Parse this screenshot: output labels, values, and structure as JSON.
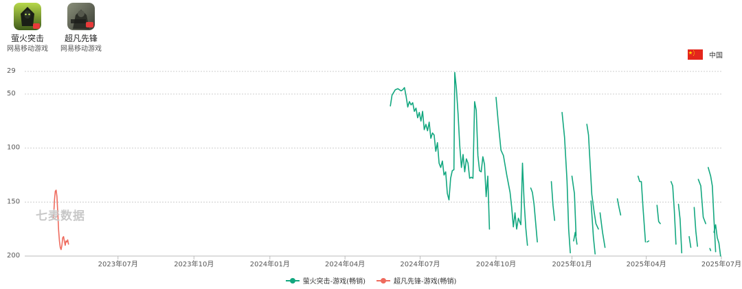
{
  "apps": [
    {
      "name": "萤火突击",
      "developer": "网易移动游戏",
      "icon": "firefly-assault-app-icon"
    },
    {
      "name": "超凡先锋",
      "developer": "网易移动游戏",
      "icon": "arena-breakout-app-icon"
    }
  ],
  "country": {
    "label": "中国",
    "icon": "china-flag-icon"
  },
  "watermark": "七麦数据",
  "colors": {
    "series1": "#12a77f",
    "series2": "#ee6a5d",
    "grid": "#cccccc"
  },
  "chart_data": {
    "type": "line",
    "title": "",
    "xlabel": "",
    "ylabel": "",
    "y_axis": {
      "inverted": true,
      "ticks": [
        29,
        50,
        100,
        150,
        200
      ],
      "range": [
        29,
        200
      ]
    },
    "x_axis": {
      "range": [
        "2023-03-10",
        "2025-07-01"
      ],
      "ticks": [
        "2023-07-01",
        "2023-10-01",
        "2024-01-01",
        "2024-04-01",
        "2024-07-01",
        "2024-10-01",
        "2025-01-01",
        "2025-04-01",
        "2025-07-01"
      ],
      "tick_labels": [
        "2023年07月",
        "2023年10月",
        "2024年01月",
        "2024年04月",
        "2024年07月",
        "2024年10月",
        "2025年01月",
        "2025年04月",
        "2025年07月"
      ]
    },
    "legend_position": "bottom",
    "grid": true,
    "series": [
      {
        "name": "萤火突击-游戏(畅销)",
        "color": "#12a77f",
        "segments": [
          [
            [
              "2024-05-26",
              61
            ],
            [
              "2024-05-28",
              51
            ],
            [
              "2024-06-01",
              46
            ],
            [
              "2024-06-04",
              45
            ],
            [
              "2024-06-08",
              47
            ],
            [
              "2024-06-10",
              46
            ],
            [
              "2024-06-12",
              44
            ],
            [
              "2024-06-14",
              52
            ],
            [
              "2024-06-16",
              62
            ],
            [
              "2024-06-18",
              57
            ],
            [
              "2024-06-20",
              60
            ],
            [
              "2024-06-22",
              58
            ],
            [
              "2024-06-24",
              66
            ],
            [
              "2024-06-26",
              63
            ],
            [
              "2024-06-28",
              72
            ],
            [
              "2024-06-30",
              67
            ],
            [
              "2024-07-02",
              75
            ],
            [
              "2024-07-04",
              66
            ],
            [
              "2024-07-06",
              83
            ],
            [
              "2024-07-08",
              78
            ],
            [
              "2024-07-10",
              84
            ],
            [
              "2024-07-12",
              76
            ],
            [
              "2024-07-14",
              91
            ],
            [
              "2024-07-16",
              86
            ],
            [
              "2024-07-18",
              88
            ],
            [
              "2024-07-20",
              103
            ],
            [
              "2024-07-22",
              95
            ],
            [
              "2024-07-24",
              114
            ],
            [
              "2024-07-26",
              118
            ],
            [
              "2024-07-28",
              112
            ],
            [
              "2024-07-30",
              125
            ],
            [
              "2024-08-01",
              122
            ],
            [
              "2024-08-03",
              142
            ],
            [
              "2024-08-05",
              148
            ],
            [
              "2024-08-07",
              128
            ],
            [
              "2024-08-09",
              121
            ],
            [
              "2024-08-11",
              120
            ],
            [
              "2024-08-12",
              30
            ],
            [
              "2024-08-14",
              45
            ],
            [
              "2024-08-16",
              68
            ],
            [
              "2024-08-18",
              97
            ],
            [
              "2024-08-20",
              118
            ],
            [
              "2024-08-22",
              106
            ],
            [
              "2024-08-24",
              122
            ],
            [
              "2024-08-26",
              110
            ],
            [
              "2024-08-28",
              114
            ],
            [
              "2024-08-30",
              128
            ],
            [
              "2024-09-01",
              127
            ],
            [
              "2024-09-03",
              128
            ],
            [
              "2024-09-05",
              57
            ],
            [
              "2024-09-07",
              65
            ],
            [
              "2024-09-09",
              107
            ],
            [
              "2024-09-11",
              121
            ],
            [
              "2024-09-13",
              122
            ],
            [
              "2024-09-15",
              108
            ],
            [
              "2024-09-17",
              115
            ],
            [
              "2024-09-19",
              145
            ],
            [
              "2024-09-21",
              126
            ],
            [
              "2024-09-23",
              175
            ]
          ],
          [
            [
              "2024-10-01",
              53
            ],
            [
              "2024-10-04",
              79
            ],
            [
              "2024-10-07",
              102
            ],
            [
              "2024-10-10",
              107
            ],
            [
              "2024-10-14",
              125
            ],
            [
              "2024-10-18",
              141
            ],
            [
              "2024-10-20",
              155
            ],
            [
              "2024-10-22",
              173
            ],
            [
              "2024-10-24",
              160
            ],
            [
              "2024-10-26",
              175
            ],
            [
              "2024-10-28",
              165
            ],
            [
              "2024-10-31",
              171
            ],
            [
              "2024-11-02",
              114
            ],
            [
              "2024-11-04",
              150
            ],
            [
              "2024-11-06",
              174
            ],
            [
              "2024-11-08",
              190
            ]
          ],
          [
            [
              "2024-11-12",
              137
            ],
            [
              "2024-11-14",
              141
            ],
            [
              "2024-11-16",
              152
            ],
            [
              "2024-11-20",
              187
            ]
          ],
          [
            [
              "2024-12-07",
              131
            ],
            [
              "2024-12-09",
              153
            ],
            [
              "2024-12-11",
              167
            ]
          ],
          [
            [
              "2025-01-01",
              126
            ],
            [
              "2025-01-03",
              137
            ],
            [
              "2025-01-04",
              142
            ],
            [
              "2025-01-06",
              181
            ]
          ],
          [
            [
              "2024-12-20",
              67
            ],
            [
              "2024-12-23",
              90
            ],
            [
              "2024-12-26",
              130
            ],
            [
              "2024-12-28",
              175
            ],
            [
              "2024-12-30",
              197
            ]
          ],
          [
            [
              "2025-01-03",
              186
            ],
            [
              "2025-01-05",
              178
            ],
            [
              "2025-01-07",
              189
            ]
          ],
          [
            [
              "2025-01-19",
              78
            ],
            [
              "2025-01-21",
              88
            ],
            [
              "2025-01-25",
              143
            ],
            [
              "2025-01-28",
              160
            ],
            [
              "2025-01-30",
              170
            ],
            [
              "2025-02-02",
              175
            ]
          ],
          [
            [
              "2025-01-24",
              149
            ],
            [
              "2025-01-27",
              183
            ],
            [
              "2025-01-29",
              198
            ]
          ],
          [
            [
              "2025-02-25",
              147
            ],
            [
              "2025-02-27",
              155
            ],
            [
              "2025-03-01",
              162
            ]
          ],
          [
            [
              "2025-02-04",
              160
            ],
            [
              "2025-02-07",
              178
            ],
            [
              "2025-02-10",
              192
            ]
          ],
          [
            [
              "2025-03-22",
              126
            ],
            [
              "2025-03-24",
              131
            ],
            [
              "2025-03-26",
              131
            ],
            [
              "2025-03-28",
              155
            ],
            [
              "2025-03-31",
              187
            ]
          ],
          [
            [
              "2025-04-02",
              187
            ],
            [
              "2025-04-04",
              186
            ]
          ],
          [
            [
              "2025-04-14",
              153
            ],
            [
              "2025-04-16",
              168
            ],
            [
              "2025-04-18",
              170
            ]
          ],
          [
            [
              "2025-05-01",
              131
            ],
            [
              "2025-05-03",
              135
            ],
            [
              "2025-05-05",
              158
            ],
            [
              "2025-05-07",
              189
            ]
          ],
          [
            [
              "2025-05-10",
              152
            ],
            [
              "2025-05-12",
              166
            ],
            [
              "2025-05-14",
              197
            ]
          ],
          [
            [
              "2025-05-23",
              182
            ],
            [
              "2025-05-25",
              192
            ]
          ],
          [
            [
              "2025-05-29",
              155
            ],
            [
              "2025-05-31",
              177
            ],
            [
              "2025-06-02",
              191
            ]
          ],
          [
            [
              "2025-06-03",
              129
            ],
            [
              "2025-06-06",
              135
            ],
            [
              "2025-06-09",
              164
            ],
            [
              "2025-06-12",
              170
            ]
          ],
          [
            [
              "2025-06-15",
              118
            ],
            [
              "2025-06-18",
              126
            ],
            [
              "2025-06-20",
              135
            ],
            [
              "2025-06-22",
              166
            ],
            [
              "2025-06-24",
              196
            ]
          ],
          [
            [
              "2025-06-17",
              193
            ],
            [
              "2025-06-18",
              195
            ]
          ],
          [
            [
              "2025-06-22",
              178
            ],
            [
              "2025-06-24",
              171
            ],
            [
              "2025-06-26",
              183
            ],
            [
              "2025-06-28",
              188
            ],
            [
              "2025-06-30",
              200
            ]
          ]
        ]
      },
      {
        "name": "超凡先锋-游戏(畅销)",
        "color": "#ee6a5d",
        "segments": [
          [
            [
              "2023-04-14",
              164
            ],
            [
              "2023-04-15",
              148
            ],
            [
              "2023-04-16",
              140
            ],
            [
              "2023-04-17",
              139
            ],
            [
              "2023-04-18",
              145
            ],
            [
              "2023-04-19",
              160
            ],
            [
              "2023-04-20",
              176
            ],
            [
              "2023-04-21",
              186
            ],
            [
              "2023-04-22",
              192
            ],
            [
              "2023-04-23",
              194
            ],
            [
              "2023-04-24",
              190
            ],
            [
              "2023-04-25",
              183
            ],
            [
              "2023-04-26",
              182
            ],
            [
              "2023-04-27",
              186
            ],
            [
              "2023-04-28",
              190
            ],
            [
              "2023-04-29",
              186
            ],
            [
              "2023-04-30",
              187
            ],
            [
              "2023-05-01",
              185
            ],
            [
              "2023-05-02",
              189
            ]
          ]
        ]
      }
    ]
  }
}
